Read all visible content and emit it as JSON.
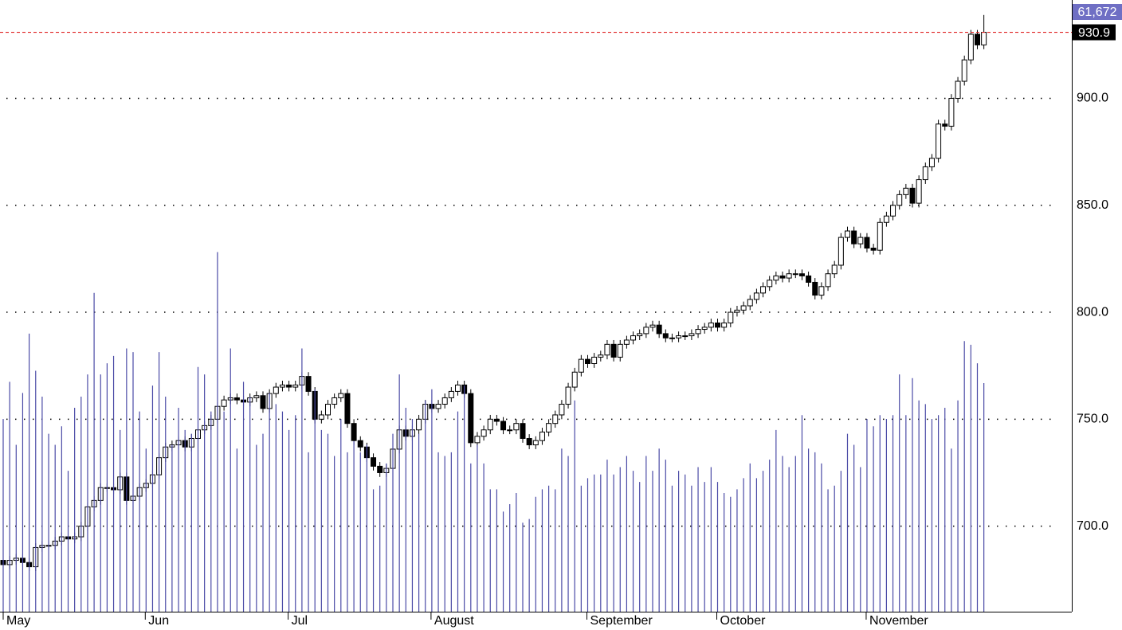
{
  "chart_data": {
    "type": "candlestick",
    "categories": [
      "May",
      null,
      null,
      null,
      null,
      null,
      null,
      null,
      null,
      null,
      null,
      null,
      null,
      null,
      null,
      null,
      null,
      null,
      null,
      null,
      null,
      null,
      "Jun",
      null,
      null,
      null,
      null,
      null,
      null,
      null,
      null,
      null,
      null,
      null,
      null,
      null,
      null,
      null,
      null,
      null,
      null,
      null,
      null,
      null,
      "Jul",
      null,
      null,
      null,
      null,
      null,
      null,
      null,
      null,
      null,
      null,
      null,
      null,
      null,
      null,
      null,
      null,
      null,
      null,
      null,
      null,
      null,
      "August",
      null,
      null,
      null,
      null,
      null,
      null,
      null,
      null,
      null,
      null,
      null,
      null,
      null,
      null,
      null,
      null,
      null,
      null,
      null,
      null,
      null,
      null,
      null,
      "September",
      null,
      null,
      null,
      null,
      null,
      null,
      null,
      null,
      null,
      null,
      null,
      null,
      null,
      null,
      null,
      null,
      null,
      null,
      null,
      "October",
      null,
      null,
      null,
      null,
      null,
      null,
      null,
      null,
      null,
      null,
      null,
      null,
      null,
      null,
      null,
      null,
      null,
      null,
      null,
      null,
      null,
      null,
      "November",
      null,
      null,
      null,
      null,
      null,
      null,
      null,
      null,
      null,
      null,
      null,
      null,
      null,
      null,
      null,
      null,
      null,
      null
    ],
    "series": [
      {
        "type": "candlestick",
        "color": "#000000",
        "open": [
          684,
          682,
          684,
          685,
          683,
          681,
          690,
          691,
          691,
          693,
          695,
          694,
          695,
          700,
          709,
          712,
          718,
          718,
          717,
          723,
          712,
          714,
          718,
          720,
          724,
          732,
          737,
          738,
          740,
          737,
          741,
          745,
          747,
          750,
          756,
          759,
          760,
          759,
          758,
          760,
          761,
          755,
          762,
          765,
          766,
          765,
          766,
          770,
          763,
          750,
          752,
          757,
          760,
          762,
          748,
          740,
          737,
          732,
          728,
          725,
          727,
          736,
          745,
          742,
          745,
          750,
          757,
          755,
          757,
          760,
          763,
          766,
          762,
          739,
          742,
          745,
          750,
          749,
          745,
          745,
          748,
          741,
          738,
          740,
          744,
          748,
          752,
          757,
          765,
          772,
          778,
          776,
          779,
          780,
          785,
          779,
          785,
          787,
          789,
          790,
          793,
          794,
          790,
          788,
          788,
          789,
          789,
          790,
          792,
          793,
          795,
          793,
          795,
          800,
          801,
          803,
          806,
          809,
          812,
          815,
          817,
          816,
          818,
          818,
          817,
          814,
          808,
          812,
          818,
          822,
          835,
          838,
          832,
          835,
          830,
          829,
          842,
          845,
          850,
          855,
          858,
          851,
          862,
          868,
          872,
          888,
          887,
          900,
          908,
          918,
          930,
          925
        ],
        "high": [
          686,
          686,
          687,
          687,
          685,
          692,
          693,
          693,
          695,
          697,
          697,
          697,
          702,
          711,
          714,
          720,
          720,
          720,
          725,
          725,
          716,
          720,
          722,
          726,
          734,
          739,
          740,
          742,
          742,
          743,
          747,
          749,
          752,
          758,
          761,
          762,
          762,
          761,
          762,
          763,
          763,
          764,
          767,
          768,
          768,
          768,
          772,
          772,
          765,
          754,
          759,
          762,
          764,
          764,
          750,
          742,
          739,
          734,
          730,
          729,
          738,
          747,
          747,
          747,
          752,
          759,
          759,
          759,
          762,
          765,
          768,
          768,
          764,
          744,
          747,
          752,
          752,
          751,
          747,
          750,
          750,
          743,
          742,
          746,
          750,
          754,
          759,
          767,
          774,
          780,
          780,
          781,
          782,
          787,
          787,
          787,
          789,
          791,
          792,
          795,
          796,
          796,
          792,
          790,
          791,
          791,
          792,
          794,
          795,
          797,
          797,
          797,
          802,
          803,
          805,
          808,
          811,
          814,
          817,
          819,
          819,
          820,
          820,
          820,
          819,
          816,
          814,
          820,
          824,
          837,
          840,
          840,
          837,
          837,
          832,
          844,
          847,
          852,
          857,
          860,
          860,
          864,
          870,
          874,
          890,
          890,
          902,
          910,
          920,
          932,
          932,
          939
        ],
        "low": [
          680,
          680,
          682,
          681,
          679,
          679,
          688,
          689,
          689,
          691,
          692,
          692,
          693,
          698,
          707,
          710,
          716,
          715,
          715,
          710,
          710,
          712,
          716,
          718,
          722,
          730,
          735,
          736,
          735,
          735,
          739,
          743,
          745,
          748,
          754,
          757,
          757,
          756,
          756,
          758,
          753,
          753,
          760,
          763,
          763,
          763,
          764,
          761,
          748,
          748,
          750,
          755,
          758,
          746,
          738,
          735,
          730,
          726,
          723,
          723,
          725,
          734,
          740,
          740,
          743,
          748,
          753,
          753,
          755,
          758,
          761,
          760,
          737,
          737,
          740,
          743,
          747,
          743,
          743,
          743,
          739,
          736,
          736,
          738,
          742,
          746,
          750,
          755,
          763,
          770,
          774,
          774,
          777,
          778,
          777,
          777,
          783,
          785,
          787,
          788,
          791,
          788,
          786,
          786,
          786,
          787,
          787,
          788,
          790,
          791,
          791,
          791,
          793,
          798,
          799,
          801,
          804,
          807,
          810,
          813,
          814,
          814,
          816,
          815,
          812,
          806,
          806,
          810,
          816,
          820,
          833,
          830,
          830,
          828,
          827,
          827,
          840,
          843,
          848,
          853,
          849,
          849,
          860,
          866,
          870,
          885,
          885,
          898,
          906,
          916,
          923,
          923
        ],
        "close": [
          682,
          684,
          685,
          683,
          681,
          690,
          691,
          691,
          693,
          695,
          694,
          695,
          700,
          709,
          712,
          718,
          718,
          717,
          723,
          712,
          714,
          718,
          720,
          724,
          732,
          737,
          738,
          740,
          737,
          741,
          745,
          747,
          750,
          756,
          759,
          760,
          759,
          758,
          760,
          761,
          755,
          762,
          765,
          766,
          765,
          766,
          770,
          763,
          750,
          752,
          757,
          760,
          762,
          748,
          740,
          737,
          732,
          728,
          725,
          727,
          736,
          745,
          742,
          745,
          750,
          757,
          755,
          757,
          760,
          763,
          766,
          762,
          739,
          742,
          745,
          750,
          749,
          745,
          745,
          748,
          741,
          738,
          740,
          744,
          748,
          752,
          757,
          765,
          772,
          778,
          776,
          779,
          780,
          785,
          779,
          785,
          787,
          789,
          790,
          793,
          794,
          790,
          788,
          788,
          789,
          789,
          790,
          792,
          793,
          795,
          793,
          795,
          800,
          801,
          803,
          806,
          809,
          812,
          815,
          817,
          816,
          818,
          818,
          817,
          814,
          808,
          812,
          818,
          822,
          835,
          838,
          832,
          835,
          830,
          829,
          842,
          845,
          850,
          855,
          858,
          851,
          862,
          868,
          872,
          888,
          887,
          900,
          908,
          918,
          930,
          925,
          930.9
        ]
      },
      {
        "type": "bar",
        "axis": "y2",
        "color": "#4a4aa6",
        "values": [
          52000,
          62000,
          45000,
          59000,
          75000,
          65000,
          58000,
          48000,
          45000,
          50000,
          38000,
          55000,
          58000,
          64000,
          86000,
          64000,
          67000,
          69000,
          49000,
          71000,
          70000,
          54000,
          44000,
          61000,
          70000,
          58000,
          45000,
          55000,
          49000,
          48000,
          66000,
          64000,
          54000,
          97000,
          54000,
          71000,
          44000,
          62000,
          58000,
          45000,
          48000,
          59000,
          56000,
          54000,
          49000,
          53000,
          71000,
          43000,
          60000,
          49000,
          48000,
          42000,
          52000,
          43000,
          46000,
          43000,
          45000,
          33000,
          34000,
          40000,
          48000,
          64000,
          55000,
          52000,
          48000,
          57000,
          60000,
          43000,
          42000,
          43000,
          54000,
          61000,
          40000,
          45000,
          40000,
          33000,
          33000,
          27000,
          29000,
          32000,
          24000,
          25000,
          31000,
          33000,
          34000,
          33000,
          44000,
          42000,
          57000,
          34000,
          36000,
          37000,
          37000,
          41000,
          37000,
          39000,
          42000,
          38000,
          35000,
          42000,
          38000,
          44000,
          41000,
          34000,
          38000,
          37000,
          34000,
          39000,
          35000,
          39000,
          35000,
          32000,
          31000,
          33000,
          36000,
          40000,
          36000,
          38000,
          41000,
          49000,
          42000,
          39000,
          42000,
          53000,
          44000,
          43000,
          40000,
          33000,
          34000,
          38000,
          48000,
          45000,
          39000,
          52000,
          50000,
          53000,
          52000,
          53000,
          64000,
          53000,
          63000,
          57000,
          56000,
          52000,
          53000,
          55000,
          44000,
          57000,
          73000,
          72000,
          67000,
          61672
        ],
        "value_labels": [
          null,
          null,
          null,
          null,
          null,
          null,
          null,
          null,
          null,
          null,
          null,
          null,
          null,
          null,
          null,
          null,
          null,
          null,
          null,
          null,
          null,
          null,
          null,
          null,
          null,
          null,
          null,
          null,
          null,
          null,
          null,
          null,
          null,
          null,
          null,
          null,
          null,
          null,
          null,
          null,
          null,
          null,
          null,
          null,
          null,
          null,
          null,
          null,
          null,
          null,
          null,
          null,
          null,
          null,
          null,
          null,
          null,
          null,
          null,
          null,
          null,
          null,
          null,
          null,
          null,
          null,
          null,
          null,
          null,
          null,
          null,
          null,
          null,
          null,
          null,
          null,
          null,
          null,
          null,
          null,
          null,
          null,
          null,
          null,
          null,
          null,
          null,
          null,
          null,
          null,
          null,
          null,
          null,
          null,
          null,
          null,
          null,
          null,
          null,
          null,
          null,
          null,
          null,
          null,
          null,
          null,
          null,
          null,
          null,
          null,
          null,
          null,
          null,
          null,
          null,
          null,
          null,
          null,
          null,
          null,
          null,
          null,
          null,
          null,
          null,
          null,
          null,
          null,
          null,
          null,
          null,
          null,
          null,
          null,
          null,
          null,
          null,
          null,
          null,
          null,
          null,
          null,
          null,
          null,
          null,
          null,
          null,
          null,
          null,
          null,
          null,
          "61,672"
        ]
      }
    ],
    "ylim": [
      660,
      946
    ],
    "yticks": [
      {
        "value": 700,
        "label": "700.0"
      },
      {
        "value": 750,
        "label": "750.0"
      },
      {
        "value": 800,
        "label": "800.0"
      },
      {
        "value": 850,
        "label": "850.0"
      },
      {
        "value": 900,
        "label": "900.0"
      }
    ],
    "y2lim": [
      0,
      165000
    ],
    "grid": true,
    "last_price_line_color": "#e02020"
  }
}
